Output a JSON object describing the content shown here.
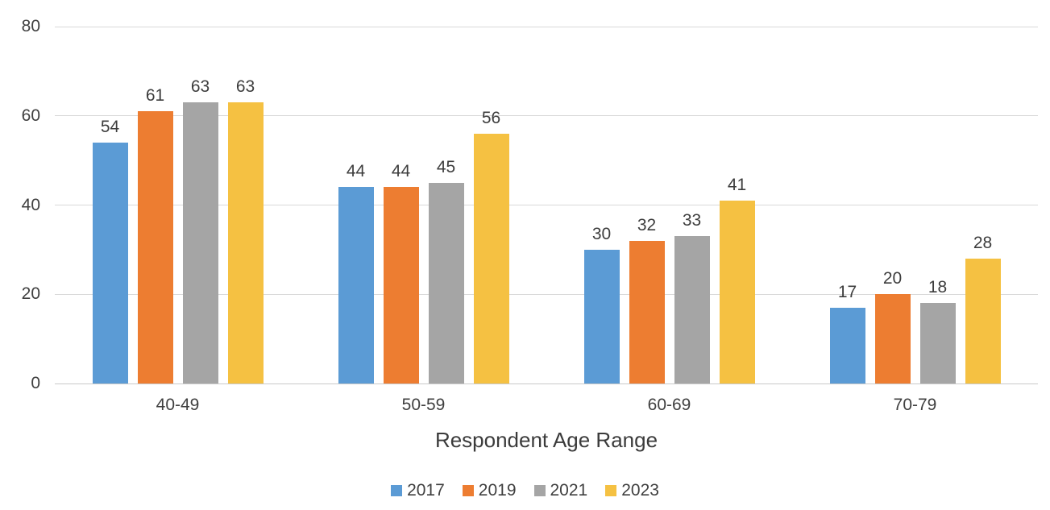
{
  "chart_data": {
    "type": "bar",
    "title": "",
    "xlabel": "Respondent Age Range",
    "ylabel": "",
    "categories": [
      "40-49",
      "50-59",
      "60-69",
      "70-79"
    ],
    "series": [
      {
        "name": "2017",
        "color": "#5B9BD5",
        "values": [
          54,
          44,
          30,
          17
        ]
      },
      {
        "name": "2019",
        "color": "#ED7D31",
        "values": [
          61,
          44,
          32,
          20
        ]
      },
      {
        "name": "2021",
        "color": "#A5A5A5",
        "values": [
          63,
          45,
          33,
          18
        ]
      },
      {
        "name": "2023",
        "color": "#F5C142",
        "values": [
          63,
          56,
          41,
          28
        ]
      }
    ],
    "y_ticks": [
      "0",
      "20",
      "40",
      "60",
      "80"
    ],
    "ylim": [
      0,
      80
    ],
    "grid": true,
    "data_labels": true,
    "legend_position": "bottom",
    "colors": {
      "gridline": "#d9d9d9",
      "baseline": "#c9c9c9",
      "text": "#404040"
    }
  }
}
